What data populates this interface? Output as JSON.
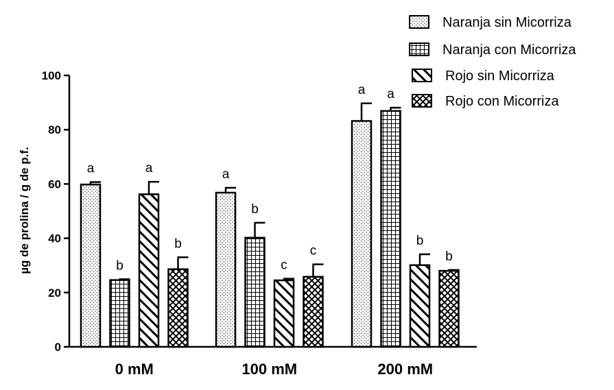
{
  "chart_data": {
    "type": "bar",
    "title": "",
    "xlabel": "",
    "ylabel": "µg de prolina / g de p.f.",
    "ylim": [
      0,
      100
    ],
    "yticks": [
      0,
      20,
      40,
      60,
      80,
      100
    ],
    "categories": [
      "0 mM",
      "100 mM",
      "200 mM"
    ],
    "grid": false,
    "legend_position": "top-right",
    "series": [
      {
        "name": "Naranja sin Micorriza",
        "pattern": "dots",
        "values": [
          59.8,
          56.8,
          83.2
        ],
        "errors": [
          0.9,
          1.8,
          6.5
        ],
        "labels": [
          "a",
          "a",
          "a"
        ]
      },
      {
        "name": "Naranja con Micorriza",
        "pattern": "grid",
        "values": [
          24.6,
          40.2,
          86.9
        ],
        "errors": [
          0.3,
          5.5,
          1.2
        ],
        "labels": [
          "b",
          "b",
          "a"
        ]
      },
      {
        "name": "Rojo sin Micorriza",
        "pattern": "diagonal",
        "values": [
          56.2,
          24.5,
          30.1
        ],
        "errors": [
          4.6,
          0.6,
          4.0
        ],
        "labels": [
          "a",
          "c",
          "b"
        ]
      },
      {
        "name": "Rojo con Micorriza",
        "pattern": "crosshatch",
        "values": [
          28.6,
          25.8,
          28.0
        ],
        "errors": [
          4.4,
          4.6,
          0.3
        ],
        "labels": [
          "b",
          "c",
          "b"
        ]
      }
    ]
  },
  "colors": {
    "ink": "#000000",
    "fill": "#ffffff"
  }
}
